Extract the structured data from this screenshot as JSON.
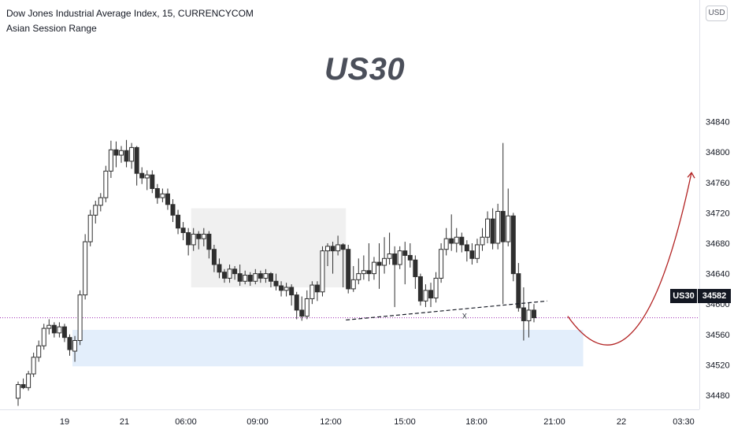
{
  "header": {
    "title": "Dow Jones Industrial Average Index, 15, CURRENCYCOM",
    "indicator": "Asian Session Range"
  },
  "watermark": "US30",
  "currency_badge": "USD",
  "last_price": {
    "symbol": "US30",
    "value": "34582"
  },
  "colors": {
    "up_body": "#ffffff",
    "down_body": "#2f2f2f",
    "wick": "#2f2f2f",
    "session_box": "#f0f0f0",
    "support_zone": "#e3eefb",
    "projection": "#b22222",
    "price_line": "#9c27b0"
  },
  "chart_data": {
    "type": "candlestick",
    "title": "US30",
    "ylim": [
      34460,
      34880
    ],
    "y_ticks": [
      "34480",
      "34520",
      "34560",
      "34600",
      "34640",
      "34680",
      "34720",
      "34760",
      "34800",
      "34840"
    ],
    "x_ticks": [
      "19",
      "21",
      "06:00",
      "09:00",
      "12:00",
      "15:00",
      "18:00",
      "21:00",
      "22",
      "03:30"
    ],
    "candles": [
      [
        34476,
        34494,
        34466,
        34498
      ],
      [
        34494,
        34490,
        34488,
        34502
      ],
      [
        34490,
        34508,
        34486,
        34512
      ],
      [
        34508,
        34530,
        34504,
        34536
      ],
      [
        34530,
        34545,
        34524,
        34552
      ],
      [
        34545,
        34568,
        34540,
        34574
      ],
      [
        34568,
        34572,
        34560,
        34580
      ],
      [
        34572,
        34562,
        34556,
        34576
      ],
      [
        34562,
        34570,
        34556,
        34576
      ],
      [
        34570,
        34556,
        34550,
        34574
      ],
      [
        34556,
        34540,
        34532,
        34560
      ],
      [
        34538,
        34552,
        34524,
        34558
      ],
      [
        34552,
        34612,
        34546,
        34618
      ],
      [
        34612,
        34682,
        34606,
        34692
      ],
      [
        34682,
        34717,
        34676,
        34724
      ],
      [
        34717,
        34730,
        34706,
        34736
      ],
      [
        34730,
        34740,
        34722,
        34746
      ],
      [
        34740,
        34775,
        34734,
        34782
      ],
      [
        34775,
        34803,
        34766,
        34815
      ],
      [
        34803,
        34796,
        34780,
        34814
      ],
      [
        34796,
        34802,
        34786,
        34808
      ],
      [
        34802,
        34788,
        34780,
        34816
      ],
      [
        34788,
        34806,
        34778,
        34812
      ],
      [
        34806,
        34772,
        34756,
        34808
      ],
      [
        34772,
        34766,
        34758,
        34780
      ],
      [
        34766,
        34770,
        34750,
        34776
      ],
      [
        34770,
        34752,
        34746,
        34776
      ],
      [
        34752,
        34740,
        34732,
        34758
      ],
      [
        34740,
        34745,
        34734,
        34752
      ],
      [
        34745,
        34731,
        34724,
        34752
      ],
      [
        34731,
        34717,
        34708,
        34738
      ],
      [
        34717,
        34700,
        34692,
        34724
      ],
      [
        34700,
        34694,
        34684,
        34708
      ],
      [
        34694,
        34678,
        34664,
        34700
      ],
      [
        34678,
        34692,
        34670,
        34700
      ],
      [
        34692,
        34686,
        34672,
        34696
      ],
      [
        34686,
        34692,
        34676,
        34700
      ],
      [
        34692,
        34672,
        34660,
        34696
      ],
      [
        34672,
        34652,
        34642,
        34678
      ],
      [
        34652,
        34642,
        34634,
        34660
      ],
      [
        34642,
        34634,
        34628,
        34646
      ],
      [
        34634,
        34646,
        34628,
        34652
      ],
      [
        34646,
        34640,
        34632,
        34650
      ],
      [
        34640,
        34630,
        34624,
        34652
      ],
      [
        34630,
        34638,
        34626,
        34644
      ],
      [
        34638,
        34630,
        34624,
        34642
      ],
      [
        34630,
        34640,
        34626,
        34646
      ],
      [
        34640,
        34634,
        34628,
        34644
      ],
      [
        34634,
        34640,
        34628,
        34646
      ],
      [
        34640,
        34630,
        34622,
        34642
      ],
      [
        34630,
        34624,
        34618,
        34640
      ],
      [
        34624,
        34618,
        34610,
        34630
      ],
      [
        34618,
        34622,
        34610,
        34628
      ],
      [
        34622,
        34612,
        34598,
        34626
      ],
      [
        34612,
        34592,
        34580,
        34616
      ],
      [
        34592,
        34584,
        34578,
        34610
      ],
      [
        34584,
        34607,
        34580,
        34618
      ],
      [
        34607,
        34625,
        34600,
        34630
      ],
      [
        34625,
        34616,
        34604,
        34630
      ],
      [
        34616,
        34670,
        34610,
        34676
      ],
      [
        34670,
        34676,
        34650,
        34680
      ],
      [
        34676,
        34670,
        34640,
        34682
      ],
      [
        34670,
        34678,
        34664,
        34690
      ],
      [
        34678,
        34672,
        34622,
        34680
      ],
      [
        34672,
        34620,
        34614,
        34678
      ],
      [
        34620,
        34632,
        34616,
        34650
      ],
      [
        34632,
        34640,
        34626,
        34660
      ],
      [
        34640,
        34644,
        34632,
        34664
      ],
      [
        34644,
        34640,
        34630,
        34680
      ],
      [
        34640,
        34655,
        34632,
        34662
      ],
      [
        34655,
        34651,
        34620,
        34680
      ],
      [
        34651,
        34660,
        34640,
        34688
      ],
      [
        34660,
        34666,
        34652,
        34694
      ],
      [
        34666,
        34652,
        34596,
        34676
      ],
      [
        34652,
        34670,
        34646,
        34676
      ],
      [
        34670,
        34664,
        34626,
        34682
      ],
      [
        34664,
        34658,
        34648,
        34680
      ],
      [
        34658,
        34636,
        34620,
        34664
      ],
      [
        34636,
        34604,
        34598,
        34640
      ],
      [
        34604,
        34618,
        34596,
        34626
      ],
      [
        34618,
        34608,
        34596,
        34628
      ],
      [
        34608,
        34634,
        34602,
        34642
      ],
      [
        34634,
        34672,
        34628,
        34680
      ],
      [
        34672,
        34686,
        34664,
        34700
      ],
      [
        34686,
        34680,
        34670,
        34718
      ],
      [
        34680,
        34688,
        34668,
        34700
      ],
      [
        34688,
        34678,
        34668,
        34694
      ],
      [
        34678,
        34670,
        34656,
        34684
      ],
      [
        34670,
        34660,
        34652,
        34680
      ],
      [
        34660,
        34678,
        34654,
        34686
      ],
      [
        34678,
        34688,
        34670,
        34700
      ],
      [
        34688,
        34712,
        34680,
        34722
      ],
      [
        34712,
        34680,
        34672,
        34726
      ],
      [
        34680,
        34722,
        34672,
        34732
      ],
      [
        34722,
        34682,
        34600,
        34812
      ],
      [
        34682,
        34716,
        34676,
        34752
      ],
      [
        34716,
        34640,
        34630,
        34720
      ],
      [
        34640,
        34595,
        34590,
        34654
      ],
      [
        34595,
        34578,
        34552,
        34622
      ],
      [
        34578,
        34592,
        34556,
        34602
      ],
      [
        34592,
        34582,
        34576,
        34600
      ]
    ],
    "session_box": {
      "x_from": 34,
      "x_to": 64,
      "y_from": 34622,
      "y_to": 34726
    },
    "support_zone": {
      "x_from": 11,
      "x_to": 110,
      "y_from": 34518,
      "y_to": 34566
    },
    "trendline": {
      "from": [
        64,
        34579
      ],
      "to": [
        103,
        34604
      ]
    },
    "marker": {
      "label": "x",
      "x": 87,
      "y": 34585
    },
    "projection": {
      "points": [
        [
          107,
          34584
        ],
        [
          114,
          34558
        ],
        [
          123,
          34600
        ],
        [
          131,
          34773
        ]
      ]
    },
    "price_line": 34582
  }
}
